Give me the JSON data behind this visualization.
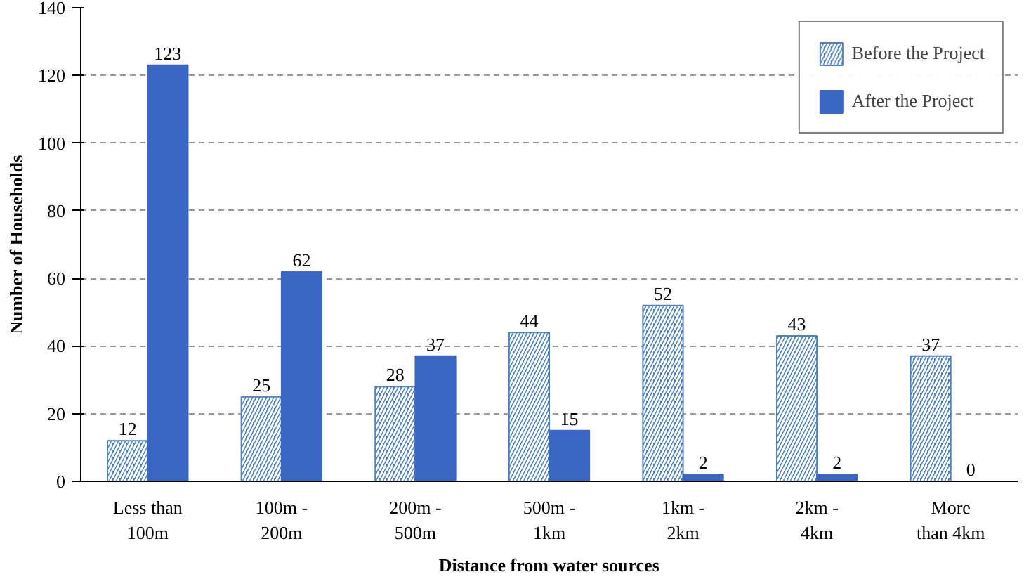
{
  "chart_data": {
    "type": "bar",
    "xlabel": "Distance from water sources",
    "ylabel": "Number of Households",
    "categories": [
      "Less than\n100m",
      "100m -\n200m",
      "200m -\n500m",
      "500m -\n1km",
      "1km -\n2km",
      "2km -\n4km",
      "More\nthan 4km"
    ],
    "series": [
      {
        "name": "Before the Project",
        "color": "#4f81bd",
        "values": [
          12,
          25,
          28,
          44,
          52,
          43,
          37
        ]
      },
      {
        "name": "After the Project",
        "color": "#3a66c4",
        "values": [
          123,
          62,
          37,
          15,
          2,
          2,
          0
        ]
      }
    ],
    "ylim": [
      0,
      140
    ],
    "yticks": [
      0,
      20,
      40,
      60,
      80,
      100,
      120,
      140
    ],
    "grid": "y",
    "legend": "top right",
    "data_labels": true
  }
}
